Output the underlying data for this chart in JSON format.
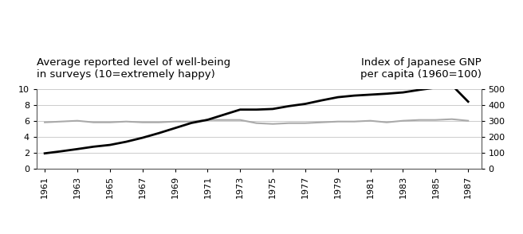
{
  "title_left": "Average reported level of well-being\nin surveys (10=extremely happy)",
  "title_right": "Index of Japanese GNP\nper capita (1960=100)",
  "years": [
    1961,
    1962,
    1963,
    1964,
    1965,
    1966,
    1967,
    1968,
    1969,
    1970,
    1971,
    1972,
    1973,
    1974,
    1975,
    1976,
    1977,
    1978,
    1979,
    1980,
    1981,
    1982,
    1983,
    1984,
    1985,
    1986,
    1987
  ],
  "happiness": [
    5.8,
    5.9,
    6.0,
    5.8,
    5.8,
    5.9,
    5.8,
    5.8,
    5.9,
    5.9,
    6.1,
    6.1,
    6.1,
    5.7,
    5.6,
    5.7,
    5.7,
    5.8,
    5.9,
    5.9,
    6.0,
    5.8,
    6.0,
    6.1,
    6.1,
    6.2,
    6.0
  ],
  "gnp_index": [
    95,
    108,
    122,
    137,
    148,
    168,
    193,
    222,
    254,
    286,
    306,
    338,
    370,
    370,
    374,
    392,
    406,
    428,
    448,
    458,
    464,
    470,
    478,
    494,
    508,
    524,
    420
  ],
  "happiness_color": "#aaaaaa",
  "gnp_color": "#000000",
  "left_ylim": [
    0,
    10
  ],
  "right_ylim": [
    0,
    500
  ],
  "left_yticks": [
    0,
    2,
    4,
    6,
    8,
    10
  ],
  "right_yticks": [
    0,
    100,
    200,
    300,
    400,
    500
  ],
  "grid_color": "#cccccc",
  "background_color": "#ffffff",
  "tick_label_fontsize": 8,
  "title_fontsize": 9.5
}
